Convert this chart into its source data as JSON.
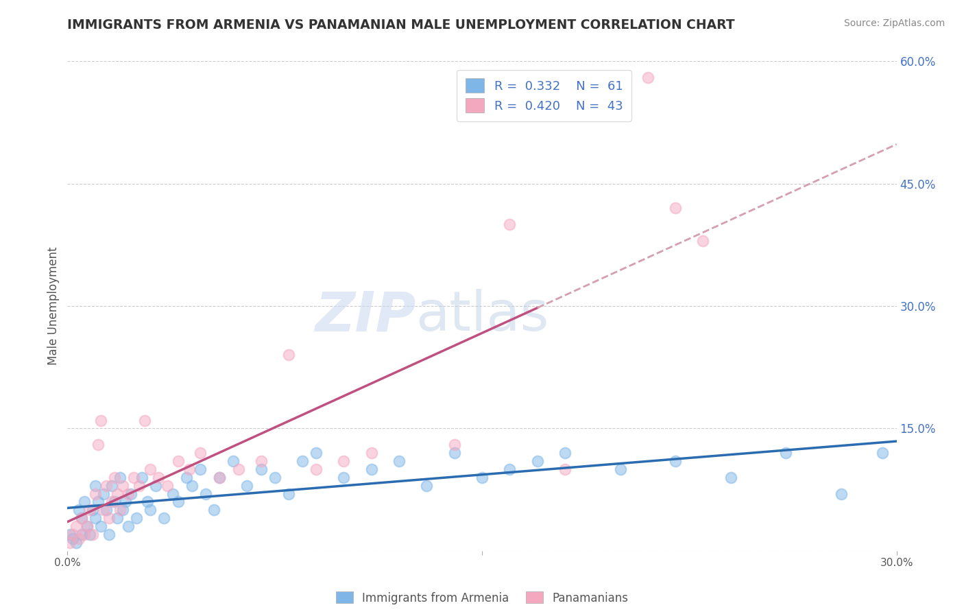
{
  "title": "IMMIGRANTS FROM ARMENIA VS PANAMANIAN MALE UNEMPLOYMENT CORRELATION CHART",
  "source": "Source: ZipAtlas.com",
  "xlabel_bottom": [
    "Immigrants from Armenia",
    "Panamanians"
  ],
  "ylabel": "Male Unemployment",
  "xlim": [
    0.0,
    0.3
  ],
  "ylim": [
    0.0,
    0.6
  ],
  "legend": {
    "blue_r": "0.332",
    "blue_n": "61",
    "pink_r": "0.420",
    "pink_n": "43"
  },
  "blue_color": "#7EB6E8",
  "pink_color": "#F4A8C0",
  "blue_line_color": "#2B6CB0",
  "pink_line_color": "#C05080",
  "pink_dashed_color": "#D4A0B0",
  "watermark": "ZIPatlas",
  "blue_points": [
    [
      0.001,
      0.02
    ],
    [
      0.002,
      0.015
    ],
    [
      0.003,
      0.01
    ],
    [
      0.004,
      0.05
    ],
    [
      0.005,
      0.04
    ],
    [
      0.005,
      0.02
    ],
    [
      0.006,
      0.06
    ],
    [
      0.007,
      0.03
    ],
    [
      0.008,
      0.02
    ],
    [
      0.009,
      0.05
    ],
    [
      0.01,
      0.04
    ],
    [
      0.01,
      0.08
    ],
    [
      0.011,
      0.06
    ],
    [
      0.012,
      0.03
    ],
    [
      0.013,
      0.07
    ],
    [
      0.014,
      0.05
    ],
    [
      0.015,
      0.02
    ],
    [
      0.016,
      0.08
    ],
    [
      0.017,
      0.06
    ],
    [
      0.018,
      0.04
    ],
    [
      0.019,
      0.09
    ],
    [
      0.02,
      0.05
    ],
    [
      0.021,
      0.06
    ],
    [
      0.022,
      0.03
    ],
    [
      0.023,
      0.07
    ],
    [
      0.025,
      0.04
    ],
    [
      0.027,
      0.09
    ],
    [
      0.029,
      0.06
    ],
    [
      0.03,
      0.05
    ],
    [
      0.032,
      0.08
    ],
    [
      0.035,
      0.04
    ],
    [
      0.038,
      0.07
    ],
    [
      0.04,
      0.06
    ],
    [
      0.043,
      0.09
    ],
    [
      0.045,
      0.08
    ],
    [
      0.048,
      0.1
    ],
    [
      0.05,
      0.07
    ],
    [
      0.053,
      0.05
    ],
    [
      0.055,
      0.09
    ],
    [
      0.06,
      0.11
    ],
    [
      0.065,
      0.08
    ],
    [
      0.07,
      0.1
    ],
    [
      0.075,
      0.09
    ],
    [
      0.08,
      0.07
    ],
    [
      0.085,
      0.11
    ],
    [
      0.09,
      0.12
    ],
    [
      0.1,
      0.09
    ],
    [
      0.11,
      0.1
    ],
    [
      0.12,
      0.11
    ],
    [
      0.13,
      0.08
    ],
    [
      0.14,
      0.12
    ],
    [
      0.15,
      0.09
    ],
    [
      0.16,
      0.1
    ],
    [
      0.17,
      0.11
    ],
    [
      0.18,
      0.12
    ],
    [
      0.2,
      0.1
    ],
    [
      0.22,
      0.11
    ],
    [
      0.24,
      0.09
    ],
    [
      0.26,
      0.12
    ],
    [
      0.28,
      0.07
    ],
    [
      0.295,
      0.12
    ]
  ],
  "pink_points": [
    [
      0.001,
      0.01
    ],
    [
      0.002,
      0.02
    ],
    [
      0.003,
      0.03
    ],
    [
      0.004,
      0.015
    ],
    [
      0.005,
      0.04
    ],
    [
      0.006,
      0.02
    ],
    [
      0.007,
      0.03
    ],
    [
      0.008,
      0.05
    ],
    [
      0.009,
      0.02
    ],
    [
      0.01,
      0.07
    ],
    [
      0.011,
      0.13
    ],
    [
      0.012,
      0.16
    ],
    [
      0.013,
      0.05
    ],
    [
      0.014,
      0.08
    ],
    [
      0.015,
      0.04
    ],
    [
      0.016,
      0.06
    ],
    [
      0.017,
      0.09
    ],
    [
      0.018,
      0.07
    ],
    [
      0.019,
      0.05
    ],
    [
      0.02,
      0.08
    ],
    [
      0.022,
      0.07
    ],
    [
      0.024,
      0.09
    ],
    [
      0.026,
      0.08
    ],
    [
      0.028,
      0.16
    ],
    [
      0.03,
      0.1
    ],
    [
      0.033,
      0.09
    ],
    [
      0.036,
      0.08
    ],
    [
      0.04,
      0.11
    ],
    [
      0.044,
      0.1
    ],
    [
      0.048,
      0.12
    ],
    [
      0.055,
      0.09
    ],
    [
      0.062,
      0.1
    ],
    [
      0.07,
      0.11
    ],
    [
      0.08,
      0.24
    ],
    [
      0.09,
      0.1
    ],
    [
      0.1,
      0.11
    ],
    [
      0.11,
      0.12
    ],
    [
      0.14,
      0.13
    ],
    [
      0.16,
      0.4
    ],
    [
      0.18,
      0.1
    ],
    [
      0.21,
      0.58
    ],
    [
      0.22,
      0.42
    ],
    [
      0.23,
      0.38
    ]
  ]
}
